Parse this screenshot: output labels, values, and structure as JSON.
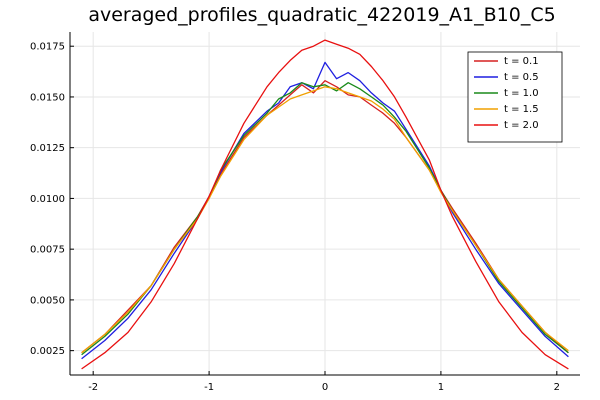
{
  "chart_data": {
    "type": "line",
    "title": "averaged_profiles_quadratic_422019_A1_B10_C5",
    "xlabel": "",
    "ylabel": "",
    "xlim": [
      -2.2,
      2.2
    ],
    "ylim": [
      0.0013,
      0.0182
    ],
    "grid": true,
    "legend": "top-right",
    "x_ticks": [
      -2,
      -1,
      0,
      1,
      2
    ],
    "x_tick_labels": [
      "-2",
      "-1",
      "0",
      "1",
      "2"
    ],
    "y_ticks": [
      0.0025,
      0.005,
      0.0075,
      0.01,
      0.0125,
      0.015,
      0.0175
    ],
    "y_tick_labels": [
      "0.0025",
      "0.0050",
      "0.0075",
      "0.0100",
      "0.0125",
      "0.0150",
      "0.0175"
    ],
    "series": [
      {
        "name": "t = 0.1",
        "color": "#d62020",
        "x": [
          -2.1,
          -1.9,
          -1.7,
          -1.5,
          -1.3,
          -1.1,
          -1.0,
          -0.9,
          -0.7,
          -0.5,
          -0.4,
          -0.3,
          -0.2,
          -0.1,
          0.0,
          0.1,
          0.2,
          0.3,
          0.4,
          0.5,
          0.6,
          0.7,
          0.9,
          1.0,
          1.1,
          1.3,
          1.5,
          1.7,
          1.9,
          2.1
        ],
        "y": [
          0.0024,
          0.0033,
          0.0045,
          0.0057,
          0.0076,
          0.0091,
          0.0101,
          0.0112,
          0.013,
          0.0141,
          0.0146,
          0.0151,
          0.0156,
          0.0152,
          0.0158,
          0.0155,
          0.0151,
          0.015,
          0.0146,
          0.0142,
          0.0137,
          0.013,
          0.0114,
          0.0104,
          0.0095,
          0.0078,
          0.006,
          0.0047,
          0.0034,
          0.0024
        ]
      },
      {
        "name": "t = 0.5",
        "color": "#1f1fe0",
        "x": [
          -2.1,
          -1.9,
          -1.7,
          -1.5,
          -1.3,
          -1.1,
          -1.0,
          -0.9,
          -0.7,
          -0.5,
          -0.4,
          -0.3,
          -0.2,
          -0.1,
          0.0,
          0.1,
          0.2,
          0.3,
          0.4,
          0.5,
          0.6,
          0.7,
          0.9,
          1.0,
          1.1,
          1.3,
          1.5,
          1.7,
          1.9,
          2.1
        ],
        "y": [
          0.0021,
          0.003,
          0.0041,
          0.0055,
          0.0073,
          0.009,
          0.0101,
          0.0113,
          0.0132,
          0.0143,
          0.0147,
          0.0155,
          0.0157,
          0.0154,
          0.0167,
          0.0159,
          0.0162,
          0.0158,
          0.0152,
          0.0147,
          0.0143,
          0.0134,
          0.0116,
          0.0104,
          0.0093,
          0.0075,
          0.0058,
          0.0045,
          0.0032,
          0.0022
        ]
      },
      {
        "name": "t = 1.0",
        "color": "#1a8a1a",
        "x": [
          -2.1,
          -1.9,
          -1.7,
          -1.5,
          -1.3,
          -1.1,
          -1.0,
          -0.9,
          -0.7,
          -0.5,
          -0.4,
          -0.3,
          -0.2,
          -0.1,
          0.0,
          0.1,
          0.2,
          0.3,
          0.4,
          0.5,
          0.6,
          0.7,
          0.9,
          1.0,
          1.1,
          1.3,
          1.5,
          1.7,
          1.9,
          2.1
        ],
        "y": [
          0.0023,
          0.0032,
          0.0043,
          0.0057,
          0.0075,
          0.0091,
          0.01,
          0.0114,
          0.0131,
          0.0142,
          0.0149,
          0.0152,
          0.0157,
          0.0155,
          0.0156,
          0.0153,
          0.0157,
          0.0154,
          0.015,
          0.0146,
          0.014,
          0.0133,
          0.0115,
          0.0104,
          0.0094,
          0.0077,
          0.0059,
          0.0046,
          0.0033,
          0.0024
        ]
      },
      {
        "name": "t = 1.5",
        "color": "#f0a000",
        "x": [
          -2.1,
          -1.9,
          -1.7,
          -1.5,
          -1.3,
          -1.1,
          -1.0,
          -0.9,
          -0.7,
          -0.5,
          -0.4,
          -0.3,
          -0.2,
          -0.1,
          0.0,
          0.1,
          0.2,
          0.3,
          0.4,
          0.5,
          0.6,
          0.7,
          0.9,
          1.0,
          1.1,
          1.3,
          1.5,
          1.7,
          1.9,
          2.1
        ],
        "y": [
          0.0024,
          0.0033,
          0.0044,
          0.0057,
          0.0075,
          0.009,
          0.01,
          0.0111,
          0.0129,
          0.0141,
          0.0145,
          0.0149,
          0.0151,
          0.0153,
          0.0155,
          0.0154,
          0.0152,
          0.015,
          0.0148,
          0.0144,
          0.0139,
          0.013,
          0.0114,
          0.0103,
          0.0094,
          0.0077,
          0.006,
          0.0047,
          0.0034,
          0.0025
        ]
      },
      {
        "name": "t = 2.0",
        "color": "#e81010",
        "x": [
          -2.1,
          -1.9,
          -1.7,
          -1.5,
          -1.3,
          -1.1,
          -1.0,
          -0.9,
          -0.7,
          -0.5,
          -0.4,
          -0.3,
          -0.2,
          -0.1,
          0.0,
          0.1,
          0.2,
          0.3,
          0.4,
          0.5,
          0.6,
          0.7,
          0.9,
          1.0,
          1.1,
          1.3,
          1.5,
          1.7,
          1.9,
          2.1
        ],
        "y": [
          0.0016,
          0.0024,
          0.0034,
          0.0049,
          0.0068,
          0.009,
          0.0101,
          0.0114,
          0.0137,
          0.0155,
          0.0162,
          0.0168,
          0.0173,
          0.0175,
          0.0178,
          0.0176,
          0.0174,
          0.0171,
          0.0165,
          0.0158,
          0.015,
          0.014,
          0.0119,
          0.0104,
          0.0091,
          0.0069,
          0.0049,
          0.0034,
          0.0023,
          0.0016
        ]
      }
    ]
  }
}
